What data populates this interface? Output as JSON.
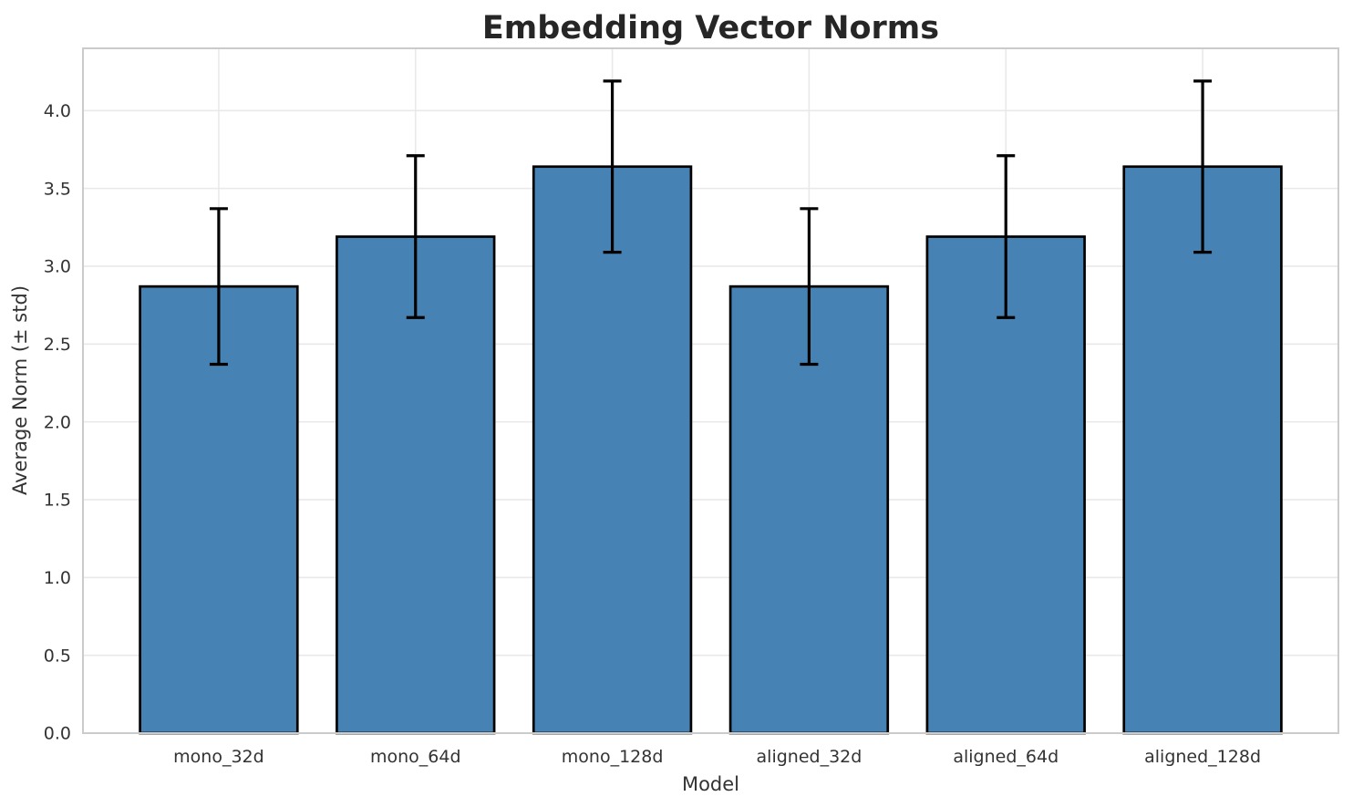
{
  "figure": {
    "title": "Embedding Vector Norms",
    "xlabel": "Model",
    "ylabel": "Average Norm (± std)"
  },
  "chart_data": {
    "type": "bar",
    "title": "Embedding Vector Norms",
    "xlabel": "Model",
    "ylabel": "Average Norm (± std)",
    "categories": [
      "mono_32d",
      "mono_64d",
      "mono_128d",
      "aligned_32d",
      "aligned_64d",
      "aligned_128d"
    ],
    "values": [
      2.87,
      3.19,
      3.64,
      2.87,
      3.19,
      3.64
    ],
    "errors": [
      0.5,
      0.52,
      0.55,
      0.5,
      0.52,
      0.55
    ],
    "error_style": "symmetric std, black caps",
    "ylim": [
      0,
      4.4
    ],
    "yticks": [
      0.0,
      0.5,
      1.0,
      1.5,
      2.0,
      2.5,
      3.0,
      3.5,
      4.0
    ],
    "ytick_labels": [
      "0.0",
      "0.5",
      "1.0",
      "1.5",
      "2.0",
      "2.5",
      "3.0",
      "3.5",
      "4.0"
    ],
    "xlim": [
      -0.69,
      5.69
    ],
    "bar_width": 0.8,
    "grid": true,
    "grid_style": "both horizontal and vertical lightgray lines",
    "legend": false,
    "colors": {
      "bar_fill": "#4682b4",
      "bar_edge": "#000000",
      "error_bar": "#000000",
      "grid": "#e9e9e9",
      "spine": "#cbcbcb",
      "background": "#ffffff",
      "title_text": "#262626",
      "tick_text": "#333333"
    }
  }
}
